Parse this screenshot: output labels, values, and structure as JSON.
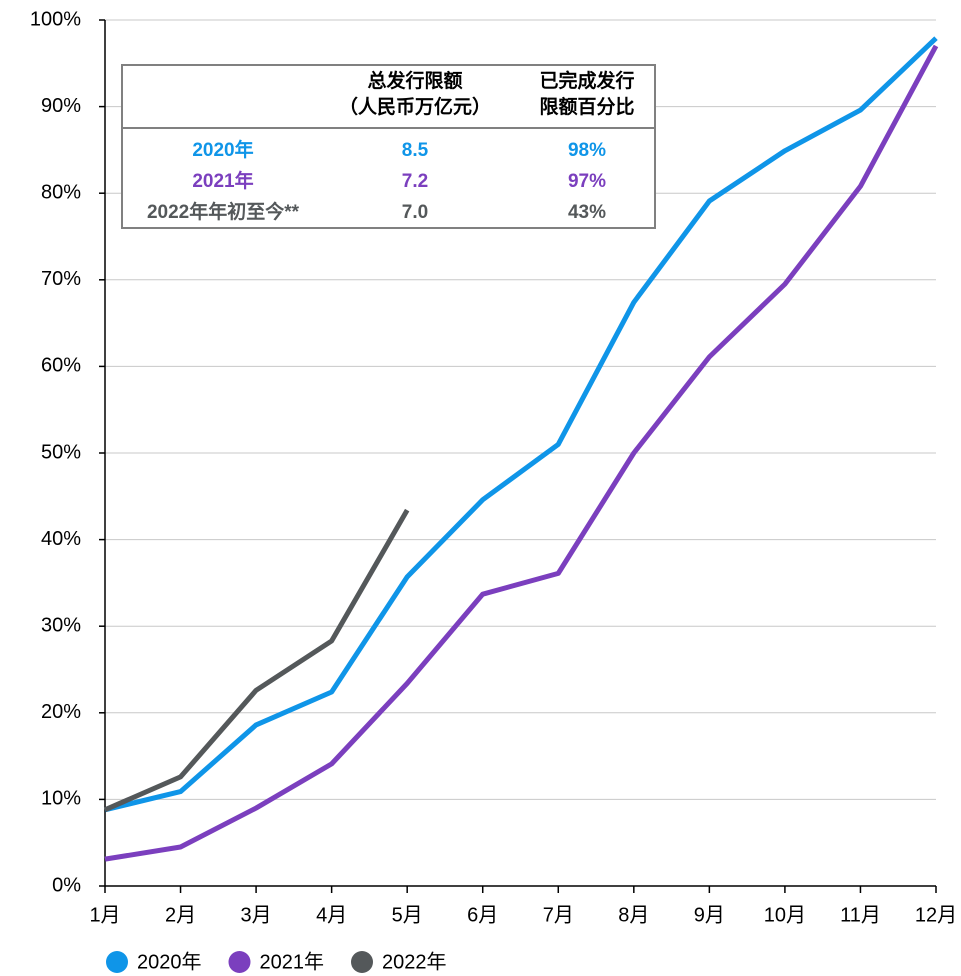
{
  "chart_data": {
    "type": "line",
    "categories": [
      "1月",
      "2月",
      "3月",
      "4月",
      "5月",
      "6月",
      "7月",
      "8月",
      "9月",
      "10月",
      "11月",
      "12月"
    ],
    "series": [
      {
        "name": "2020年",
        "color": "#0f95e8",
        "values": [
          8.8,
          10.9,
          18.6,
          22.4,
          35.7,
          44.6,
          51.0,
          67.4,
          79.1,
          84.9,
          89.6,
          97.9
        ]
      },
      {
        "name": "2021年",
        "color": "#7b3fbe",
        "values": [
          3.1,
          4.5,
          9.0,
          14.1,
          23.4,
          33.7,
          36.1,
          50.0,
          61.1,
          69.5,
          80.8,
          97.0
        ]
      },
      {
        "name": "2022年",
        "color": "#54585a",
        "values": [
          8.8,
          12.6,
          22.6,
          28.3,
          43.4,
          null,
          null,
          null,
          null,
          null,
          null,
          null
        ]
      }
    ],
    "ylim": [
      0,
      100
    ],
    "yticks": [
      {
        "value": 0,
        "label": "0%"
      },
      {
        "value": 10,
        "label": "10%"
      },
      {
        "value": 20,
        "label": "20%"
      },
      {
        "value": 30,
        "label": "30%"
      },
      {
        "value": 40,
        "label": "40%"
      },
      {
        "value": 50,
        "label": "50%"
      },
      {
        "value": 60,
        "label": "60%"
      },
      {
        "value": 70,
        "label": "70%"
      },
      {
        "value": 80,
        "label": "80%"
      },
      {
        "value": 90,
        "label": "90%"
      },
      {
        "value": 100,
        "label": "100%"
      }
    ],
    "grid": true,
    "legend": "bottom",
    "table": {
      "header": [
        [
          "总发行限额",
          "（人民币万亿元）"
        ],
        [
          "已完成发行",
          "限额百分比"
        ]
      ],
      "rows": [
        [
          "2020年",
          "8.5",
          "98%"
        ],
        [
          "2021年",
          "7.2",
          "97%"
        ],
        [
          "2022年年初至今**",
          "7.0",
          "43%"
        ]
      ]
    }
  }
}
